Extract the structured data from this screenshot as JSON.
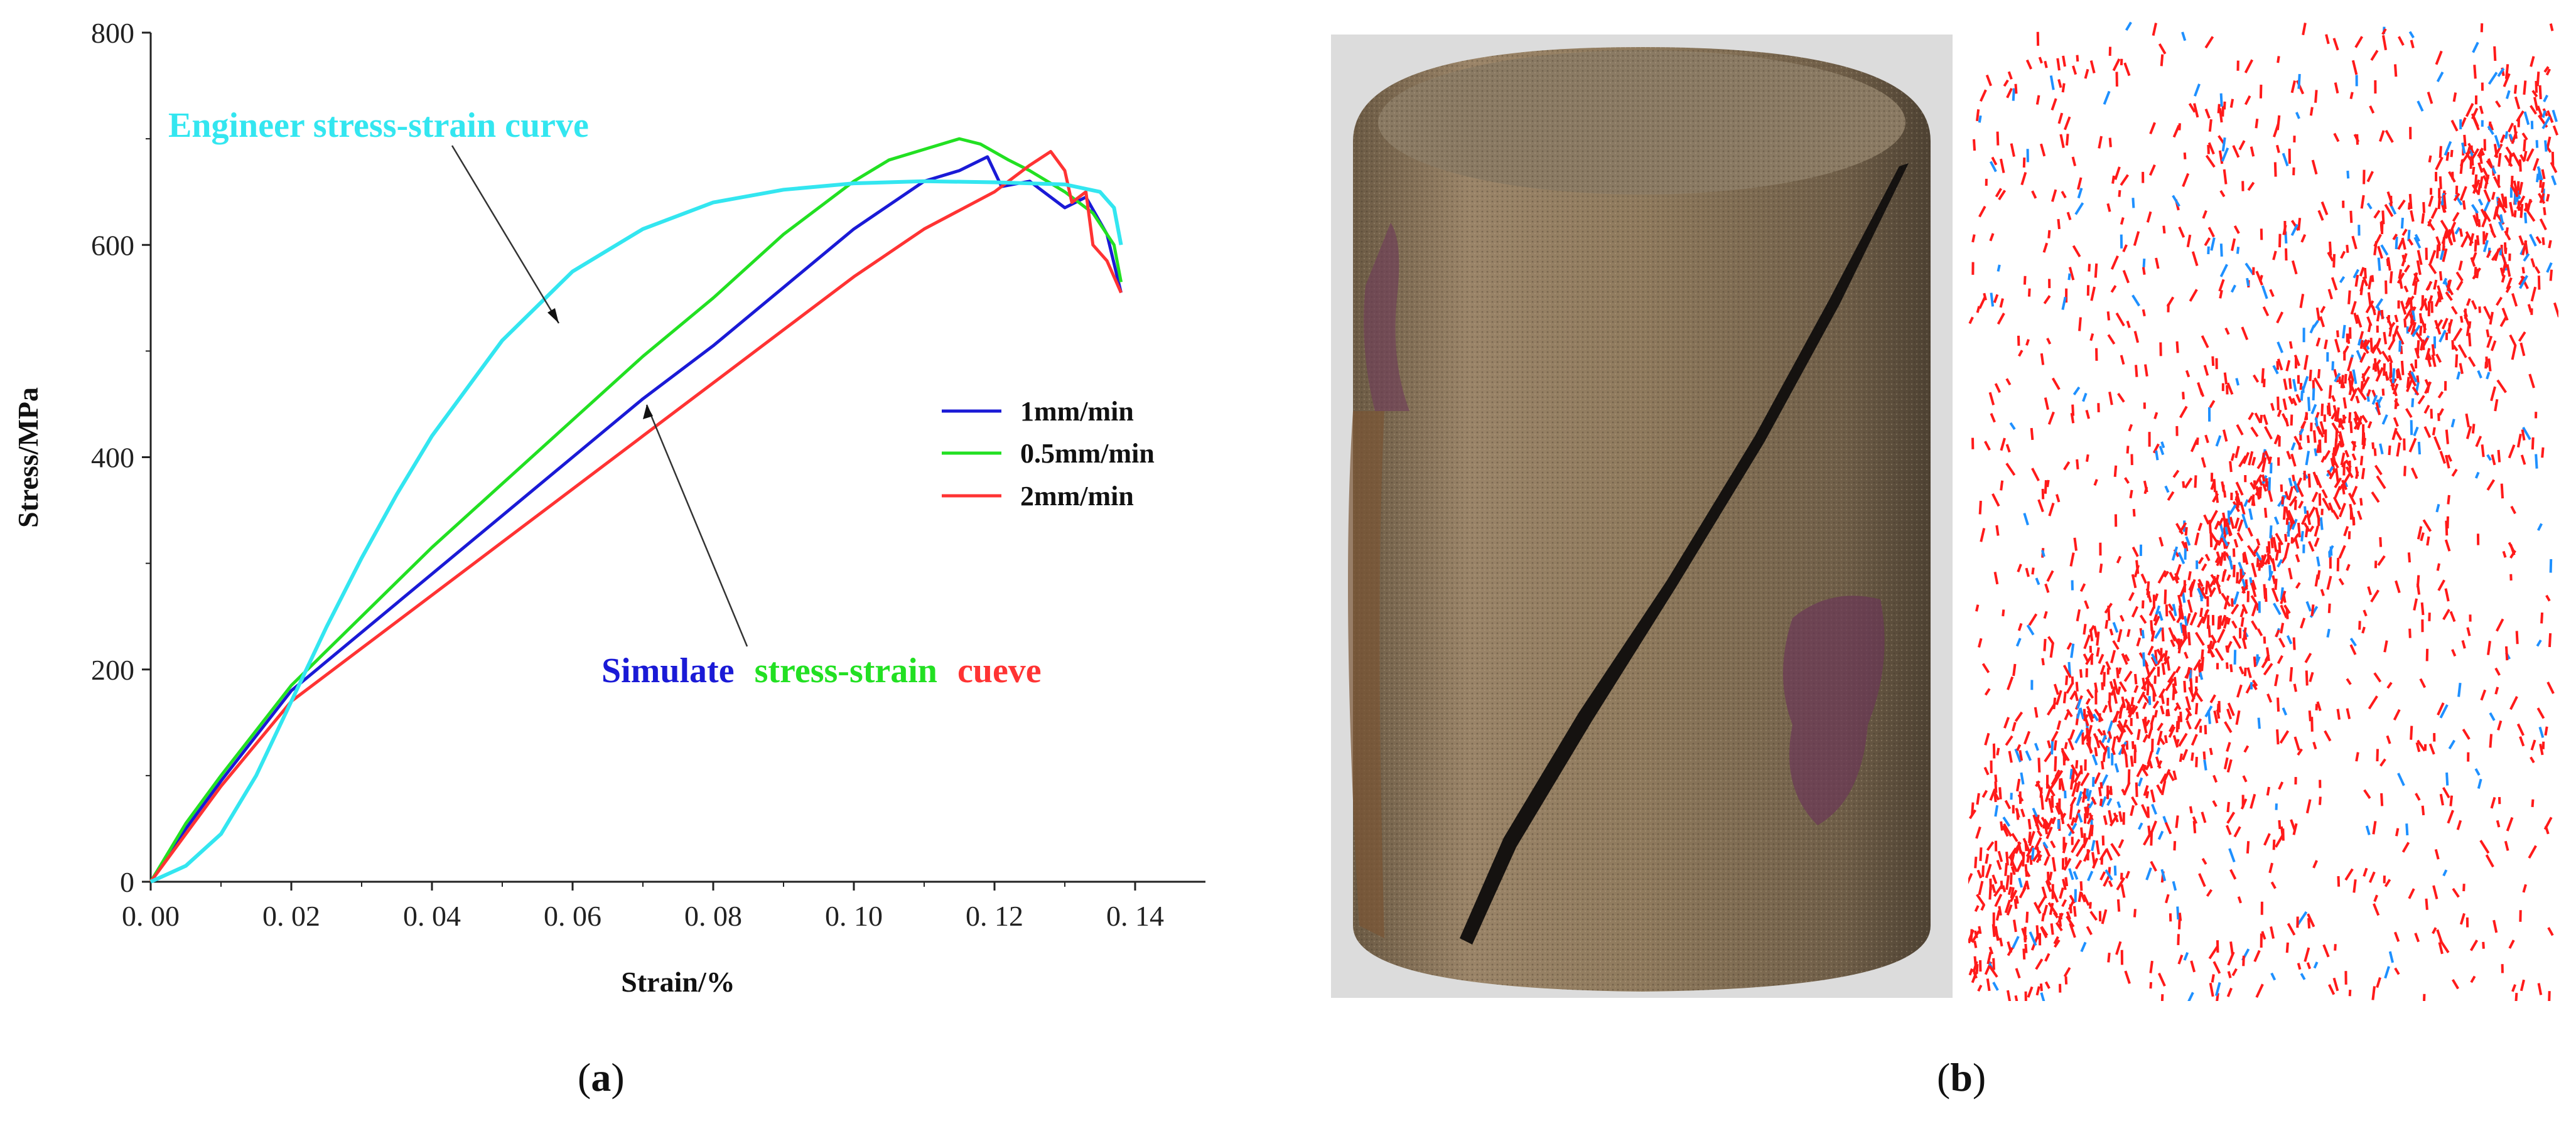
{
  "panels": {
    "a_label": "a",
    "b_label": "b"
  },
  "colors": {
    "engineer": "#33e6f0",
    "rate_1": "#1a1ad6",
    "rate_05": "#22e022",
    "rate_2": "#ff3333",
    "fracture_red": "#ff1a1a",
    "fracture_blue": "#1e90ff"
  },
  "chart_data": {
    "type": "line",
    "title": "",
    "xlabel": "Strain/%",
    "ylabel": "Stress/MPa",
    "xlim": [
      0,
      0.15
    ],
    "ylim": [
      0,
      800
    ],
    "x_ticks": [
      "0. 00",
      "0. 02",
      "0. 04",
      "0. 06",
      "0. 08",
      "0. 10",
      "0. 12",
      "0. 14"
    ],
    "y_ticks": [
      "0",
      "200",
      "400",
      "600",
      "800"
    ],
    "legend_position": "right",
    "series": [
      {
        "name": "1mm/min",
        "color": "#1a1ad6",
        "in_legend": true,
        "x": [
          0,
          0.005,
          0.01,
          0.02,
          0.03,
          0.04,
          0.05,
          0.06,
          0.07,
          0.08,
          0.09,
          0.1,
          0.11,
          0.115,
          0.119,
          0.121,
          0.125,
          0.13,
          0.133,
          0.136,
          0.138
        ],
        "y": [
          0,
          50,
          95,
          180,
          235,
          290,
          345,
          400,
          455,
          505,
          560,
          615,
          660,
          670,
          683,
          655,
          660,
          635,
          645,
          610,
          555
        ]
      },
      {
        "name": "0.5mm/min",
        "color": "#22e022",
        "in_legend": true,
        "x": [
          0,
          0.005,
          0.01,
          0.02,
          0.03,
          0.04,
          0.05,
          0.06,
          0.07,
          0.08,
          0.09,
          0.1,
          0.105,
          0.11,
          0.115,
          0.118,
          0.122,
          0.125,
          0.13,
          0.134,
          0.137,
          0.138
        ],
        "y": [
          0,
          55,
          100,
          185,
          250,
          315,
          375,
          435,
          495,
          550,
          610,
          660,
          680,
          690,
          700,
          695,
          680,
          670,
          650,
          630,
          600,
          565
        ]
      },
      {
        "name": "2mm/min",
        "color": "#ff3333",
        "in_legend": true,
        "x": [
          0,
          0.005,
          0.01,
          0.02,
          0.03,
          0.04,
          0.05,
          0.06,
          0.07,
          0.08,
          0.09,
          0.1,
          0.11,
          0.12,
          0.125,
          0.128,
          0.13,
          0.131,
          0.133,
          0.134,
          0.136,
          0.138
        ],
        "y": [
          0,
          45,
          90,
          170,
          220,
          270,
          320,
          370,
          420,
          470,
          520,
          570,
          615,
          650,
          675,
          688,
          670,
          640,
          650,
          600,
          585,
          555
        ]
      },
      {
        "name": "",
        "color": "#33e6f0",
        "in_legend": false,
        "x": [
          0,
          0.005,
          0.01,
          0.015,
          0.02,
          0.025,
          0.03,
          0.035,
          0.04,
          0.05,
          0.06,
          0.07,
          0.08,
          0.09,
          0.1,
          0.11,
          0.12,
          0.13,
          0.135,
          0.137,
          0.138
        ],
        "y": [
          0,
          15,
          45,
          100,
          170,
          240,
          305,
          365,
          420,
          510,
          575,
          615,
          640,
          652,
          658,
          660,
          659,
          657,
          650,
          635,
          600
        ]
      }
    ],
    "annotations": {
      "engineer_label": "Engineer stress-strain curve",
      "simulate_word_1": "Simulate",
      "simulate_word_2": "stress-strain",
      "simulate_word_3": "cueve"
    }
  }
}
